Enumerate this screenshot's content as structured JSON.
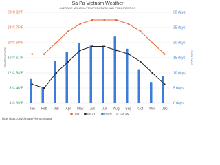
{
  "chart_data": {
    "type": "bar-line",
    "title": "Sa Pa Vietnam Weather",
    "subtitle": "AVERAGE MONTHLY TEMPERATURE AND PRECIPITATION",
    "y_label": "TEMPERATURE",
    "y2_label": "RAIN DAYS",
    "categories": [
      "Jan",
      "Feb",
      "Mar",
      "Apr",
      "May",
      "Jun",
      "Jul",
      "Aug",
      "Sep",
      "Oct",
      "Nov",
      "Dec"
    ],
    "series": [
      {
        "name": "DAY",
        "type": "line",
        "color": "#e8663a",
        "values": [
          17,
          17,
          20,
          23,
          25,
          26,
          26,
          26,
          25,
          23,
          20,
          17
        ]
      },
      {
        "name": "NIGHT",
        "type": "line",
        "color": "#222222",
        "values": [
          9,
          8,
          12,
          15,
          18,
          19,
          19,
          18,
          17,
          15,
          12,
          9
        ]
      },
      {
        "name": "RAIN",
        "type": "bar",
        "axis": "y2",
        "color": "#3b7dd8",
        "values": [
          8,
          5,
          14,
          17,
          20,
          19,
          19,
          22,
          18,
          11,
          7,
          9
        ]
      },
      {
        "name": "SNOW",
        "type": "bar",
        "axis": "y2",
        "color": "#cccccc",
        "values": [
          0,
          0,
          0,
          0,
          0,
          0,
          0,
          0,
          0,
          0,
          0,
          0
        ]
      }
    ],
    "ylim": [
      4,
      28
    ],
    "yticks": [
      {
        "value": 4,
        "label": "4°C 39°F"
      },
      {
        "value": 8,
        "label": "8°C 46°F"
      },
      {
        "value": 12,
        "label": "12°C 54°F"
      },
      {
        "value": 16,
        "label": "16°C 61°F"
      },
      {
        "value": 20,
        "label": "20°C 68°F"
      },
      {
        "value": 24,
        "label": "24°C 75°F"
      },
      {
        "value": 28,
        "label": "28°C 82°F"
      }
    ],
    "y2lim": [
      0,
      30
    ],
    "y2ticks": [
      {
        "value": 0,
        "label": "0 days"
      },
      {
        "value": 5,
        "label": "5 days"
      },
      {
        "value": 10,
        "label": "10 days"
      },
      {
        "value": 15,
        "label": "15 days"
      },
      {
        "value": 20,
        "label": "20 days"
      },
      {
        "value": 25,
        "label": "25 days"
      },
      {
        "value": 30,
        "label": "30 days"
      }
    ],
    "grid": true,
    "source": "hikersbay.com/climate/vietnam/sapa"
  }
}
